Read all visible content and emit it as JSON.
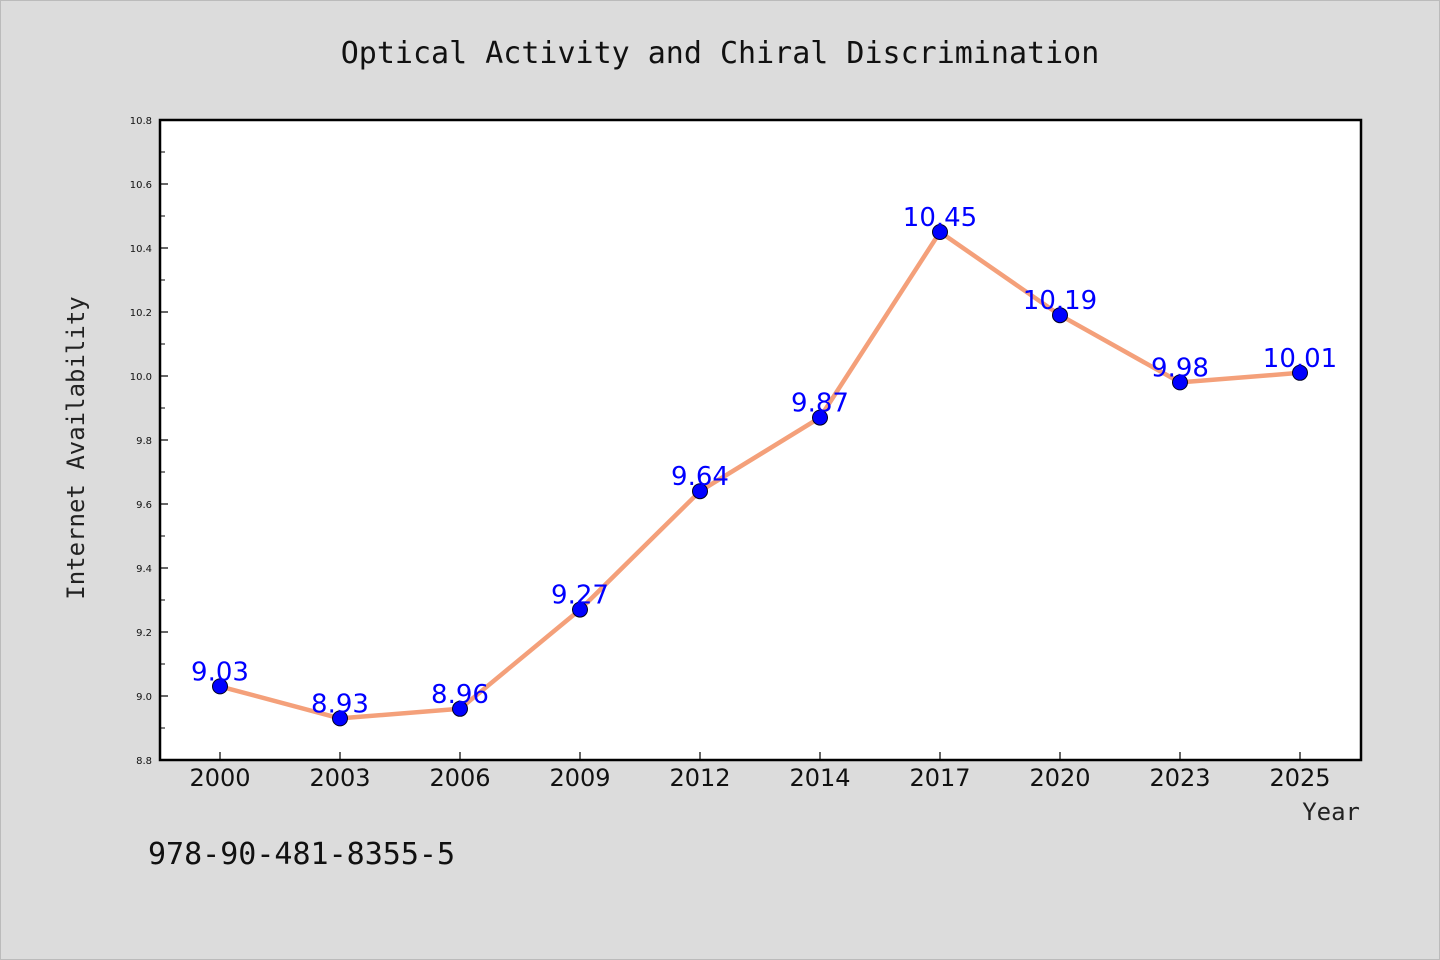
{
  "chart_data": {
    "type": "line",
    "title": "Optical Activity and Chiral Discrimination",
    "xlabel": "Year",
    "ylabel": "Internet Availability",
    "categories": [
      "2000",
      "2003",
      "2006",
      "2009",
      "2012",
      "2014",
      "2017",
      "2020",
      "2023",
      "2025"
    ],
    "values": [
      9.03,
      8.93,
      8.96,
      9.27,
      9.64,
      9.87,
      10.45,
      10.19,
      9.98,
      10.01
    ],
    "data_labels": [
      "9.03",
      "8.93",
      "8.96",
      "9.27",
      "9.64",
      "9.87",
      "10.45",
      "10.19",
      "9.98",
      "10.01"
    ],
    "ylim": [
      8.8,
      10.8
    ],
    "yticks": [
      "8.8",
      "9.0",
      "9.2",
      "9.4",
      "9.6",
      "9.8",
      "10.0",
      "10.2",
      "10.4",
      "10.6",
      "10.8"
    ],
    "grid": false,
    "line_color": "#f4a07a",
    "marker_color": "#0000ff",
    "label_color": "#0000ff",
    "background": "#dcdcdc",
    "plot_background": "#ffffff"
  },
  "footnote": "978-90-481-8355-5"
}
